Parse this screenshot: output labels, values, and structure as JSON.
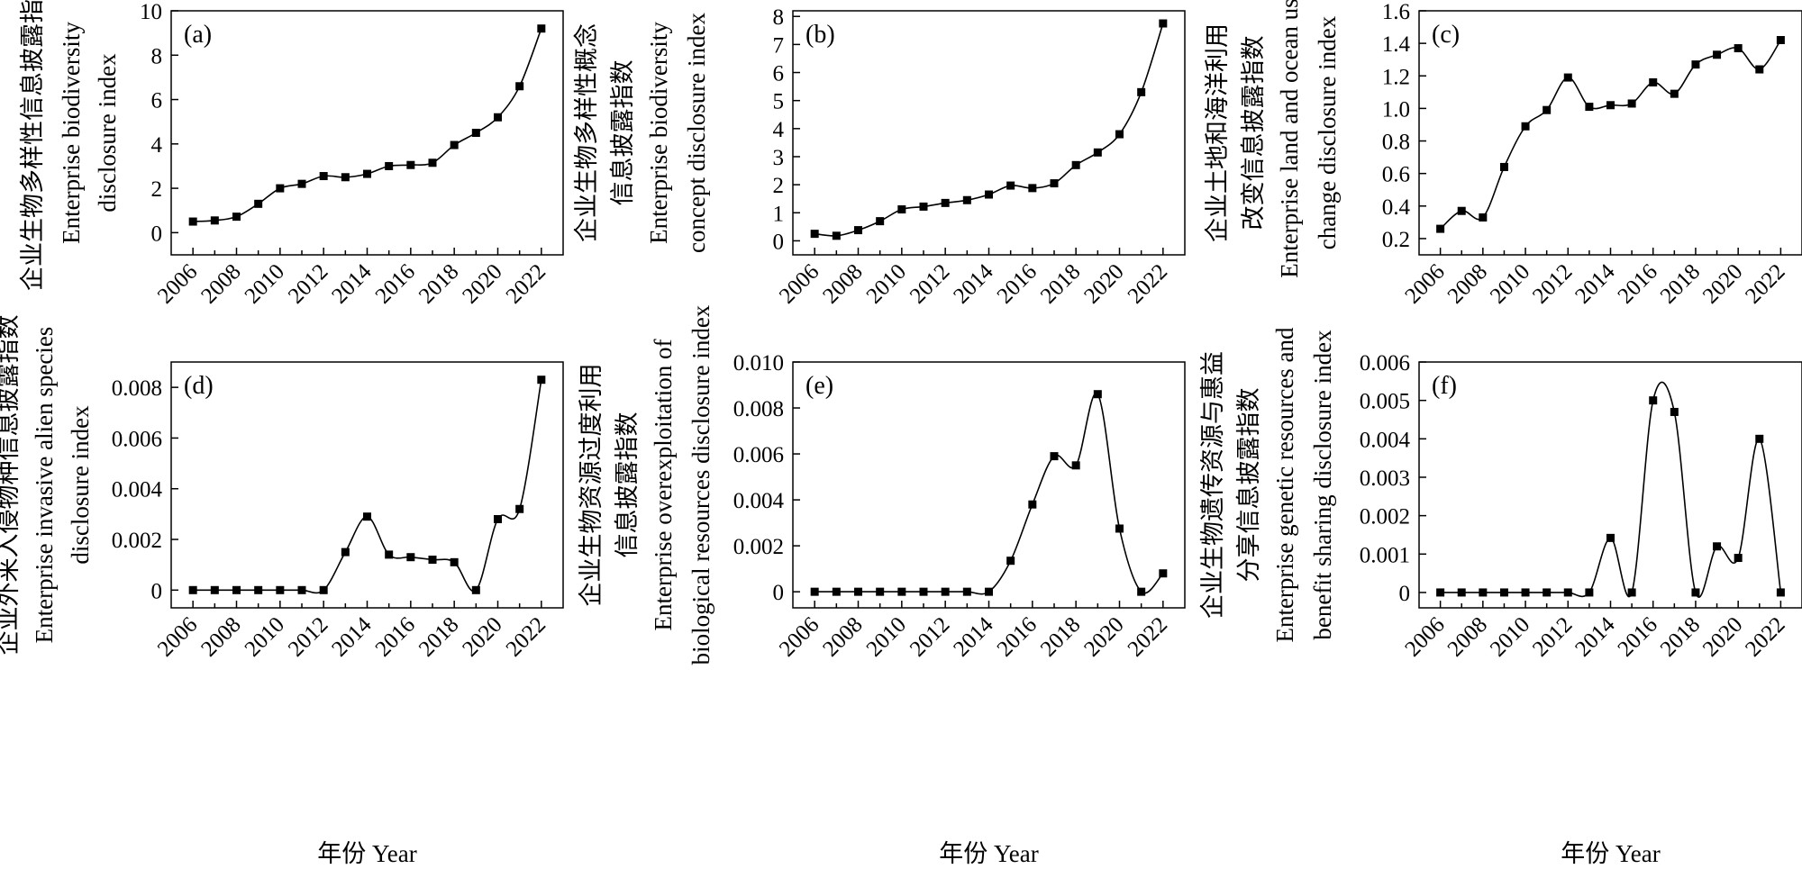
{
  "chart_data": [
    {
      "type": "line",
      "panel_label": "(a)",
      "ylabel_lines": [
        "企业生物多样性信息披露指数",
        "Enterprise biodiversity",
        "disclosure index"
      ],
      "xlabel": "",
      "x": [
        2006,
        2007,
        2008,
        2009,
        2010,
        2011,
        2012,
        2013,
        2014,
        2015,
        2016,
        2017,
        2018,
        2019,
        2020,
        2021,
        2022
      ],
      "values": [
        0.5,
        0.55,
        0.72,
        1.3,
        2.0,
        2.2,
        2.55,
        2.5,
        2.65,
        3.0,
        3.05,
        3.15,
        3.95,
        4.5,
        5.2,
        6.6,
        9.2
      ],
      "xlim": [
        2005,
        2023
      ],
      "ylim": [
        -1,
        10
      ],
      "xticks": [
        "2006",
        "2008",
        "2010",
        "2012",
        "2014",
        "2016",
        "2018",
        "2020",
        "2022"
      ],
      "yticks": [
        "0",
        "2",
        "4",
        "6",
        "8",
        "10"
      ],
      "grid": false
    },
    {
      "type": "line",
      "panel_label": "(b)",
      "ylabel_lines": [
        "企业生物多样性概念",
        "信息披露指数",
        "Enterprise biodiversity",
        "concept disclosure index"
      ],
      "xlabel": "",
      "x": [
        2006,
        2007,
        2008,
        2009,
        2010,
        2011,
        2012,
        2013,
        2014,
        2015,
        2016,
        2017,
        2018,
        2019,
        2020,
        2021,
        2022
      ],
      "values": [
        0.25,
        0.18,
        0.38,
        0.7,
        1.12,
        1.22,
        1.35,
        1.45,
        1.65,
        1.97,
        1.88,
        2.05,
        2.7,
        3.15,
        3.8,
        5.3,
        7.75
      ],
      "xlim": [
        2005,
        2023
      ],
      "ylim": [
        -0.5,
        8.2
      ],
      "xticks": [
        "2006",
        "2008",
        "2010",
        "2012",
        "2014",
        "2016",
        "2018",
        "2020",
        "2022"
      ],
      "yticks": [
        "0",
        "1",
        "2",
        "3",
        "4",
        "5",
        "6",
        "7",
        "8"
      ],
      "grid": false
    },
    {
      "type": "line",
      "panel_label": "(c)",
      "ylabel_lines": [
        "企业土地和海洋利用",
        "改变信息披露指数",
        "Enterprise land and ocean use",
        "change disclosure index"
      ],
      "xlabel": "",
      "x": [
        2006,
        2007,
        2008,
        2009,
        2010,
        2011,
        2012,
        2013,
        2014,
        2015,
        2016,
        2017,
        2018,
        2019,
        2020,
        2021,
        2022
      ],
      "values": [
        0.26,
        0.37,
        0.33,
        0.64,
        0.89,
        0.99,
        1.19,
        1.01,
        1.02,
        1.03,
        1.16,
        1.09,
        1.27,
        1.33,
        1.37,
        1.24,
        1.42
      ],
      "xlim": [
        2005,
        2023
      ],
      "ylim": [
        0.1,
        1.6
      ],
      "xticks": [
        "2006",
        "2008",
        "2010",
        "2012",
        "2014",
        "2016",
        "2018",
        "2020",
        "2022"
      ],
      "yticks": [
        "0.2",
        "0.4",
        "0.6",
        "0.8",
        "1.0",
        "1.2",
        "1.4",
        "1.6"
      ],
      "grid": false
    },
    {
      "type": "line",
      "panel_label": "(d)",
      "ylabel_lines": [
        "企业外来入侵物种信息披露指数",
        "Enterprise invasive alien species",
        "disclosure index"
      ],
      "xlabel": "年份 Year",
      "x": [
        2006,
        2007,
        2008,
        2009,
        2010,
        2011,
        2012,
        2013,
        2014,
        2015,
        2016,
        2017,
        2018,
        2019,
        2020,
        2021,
        2022
      ],
      "values": [
        0,
        0,
        0,
        0,
        0,
        0,
        0,
        0.0015,
        0.0029,
        0.0014,
        0.0013,
        0.0012,
        0.0011,
        0,
        0.0028,
        0.0032,
        0.0083
      ],
      "xlim": [
        2005,
        2023
      ],
      "ylim": [
        -0.0007,
        0.009
      ],
      "xticks": [
        "2006",
        "2008",
        "2010",
        "2012",
        "2014",
        "2016",
        "2018",
        "2020",
        "2022"
      ],
      "yticks": [
        "0",
        "0.002",
        "0.004",
        "0.006",
        "0.008"
      ],
      "grid": false
    },
    {
      "type": "line",
      "panel_label": "(e)",
      "ylabel_lines": [
        "企业生物资源过度利用",
        "信息披露指数",
        "Enterprise overexploitation of",
        "biological resources disclosure index"
      ],
      "xlabel": "年份 Year",
      "x": [
        2006,
        2007,
        2008,
        2009,
        2010,
        2011,
        2012,
        2013,
        2014,
        2015,
        2016,
        2017,
        2018,
        2019,
        2020,
        2021,
        2022
      ],
      "values": [
        0,
        0,
        0,
        0,
        0,
        0,
        0,
        0,
        0,
        0.00135,
        0.0038,
        0.0059,
        0.0055,
        0.0086,
        0.00275,
        0,
        0.0008
      ],
      "xlim": [
        2005,
        2023
      ],
      "ylim": [
        -0.0007,
        0.01
      ],
      "xticks": [
        "2006",
        "2008",
        "2010",
        "2012",
        "2014",
        "2016",
        "2018",
        "2020",
        "2022"
      ],
      "yticks": [
        "0",
        "0.002",
        "0.004",
        "0.006",
        "0.008",
        "0.010"
      ],
      "grid": false
    },
    {
      "type": "line",
      "panel_label": "(f)",
      "ylabel_lines": [
        "企业生物遗传资源与惠益",
        "分享信息披露指数",
        "Enterprise genetic resources and",
        "benefit sharing disclosure index"
      ],
      "xlabel": "年份 Year",
      "x": [
        2006,
        2007,
        2008,
        2009,
        2010,
        2011,
        2012,
        2013,
        2014,
        2015,
        2016,
        2017,
        2018,
        2019,
        2020,
        2021,
        2022
      ],
      "values": [
        0,
        0,
        0,
        0,
        0,
        0,
        0,
        0,
        0.00142,
        0,
        0.005,
        0.0047,
        0,
        0.0012,
        0.0009,
        0.004,
        0
      ],
      "xlim": [
        2005,
        2023
      ],
      "ylim": [
        -0.0004,
        0.006
      ],
      "xticks": [
        "2006",
        "2008",
        "2010",
        "2012",
        "2014",
        "2016",
        "2018",
        "2020",
        "2022"
      ],
      "yticks": [
        "0",
        "0.001",
        "0.002",
        "0.003",
        "0.004",
        "0.005",
        "0.006"
      ],
      "grid": false
    }
  ]
}
